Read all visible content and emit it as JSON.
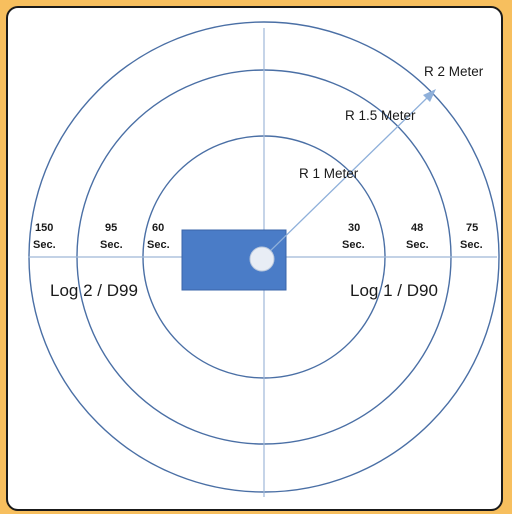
{
  "colors": {
    "background": "#F7BF5E",
    "panel": "#FFFFFF",
    "circle_stroke": "#4A6FA5",
    "axis_stroke": "#9FB8D8",
    "rect_fill": "#4A7CC7",
    "marker_fill": "#E8EDF5"
  },
  "radius_labels": {
    "r1": "R 1 Meter",
    "r15": "R 1.5 Meter",
    "r2": "R 2 Meter"
  },
  "time_labels_left": [
    {
      "value": "150",
      "unit": "Sec."
    },
    {
      "value": "95",
      "unit": "Sec."
    },
    {
      "value": "60",
      "unit": "Sec."
    }
  ],
  "time_labels_right": [
    {
      "value": "30",
      "unit": "Sec."
    },
    {
      "value": "48",
      "unit": "Sec."
    },
    {
      "value": "75",
      "unit": "Sec."
    }
  ],
  "log_labels": {
    "left": "Log 2  / D99",
    "right": "Log 1 / D90"
  }
}
